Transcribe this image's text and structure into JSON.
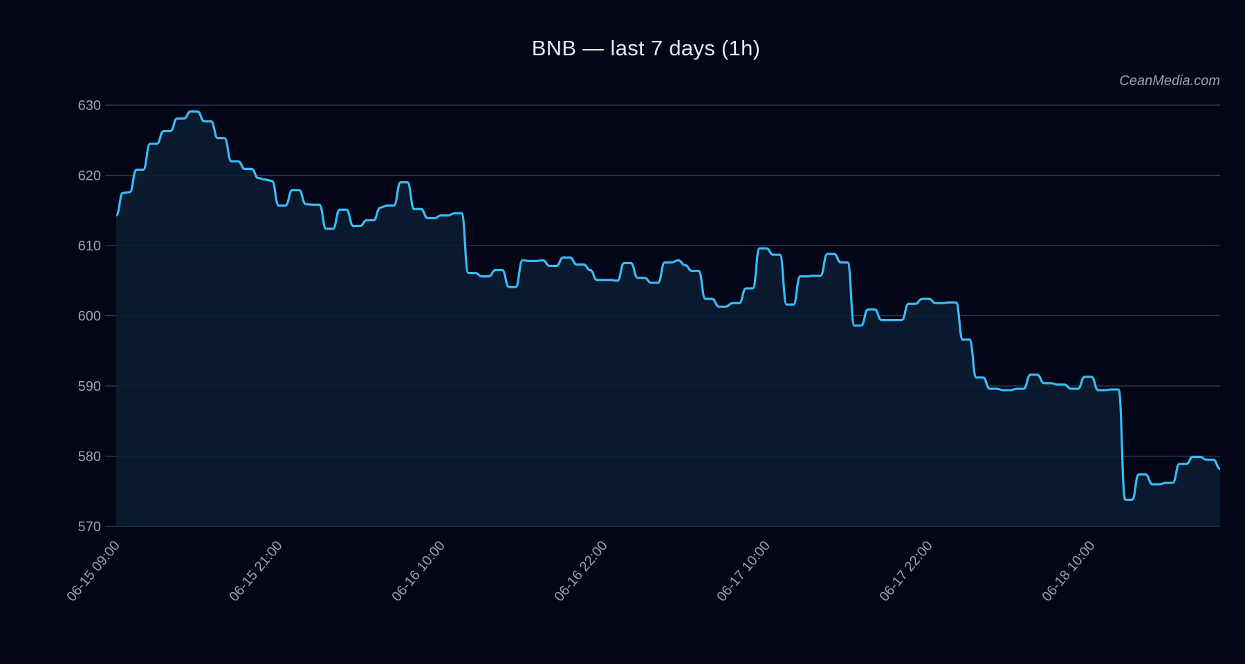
{
  "chart_data": {
    "type": "area",
    "title": "BNB — last 7 days (1h)",
    "watermark": "CeanMedia.com",
    "xlabel": "",
    "ylabel": "",
    "ylim": [
      570,
      630
    ],
    "yticks": [
      570,
      580,
      590,
      600,
      610,
      620,
      630
    ],
    "xticks": [
      "06-15 09:00",
      "06-15 21:00",
      "06-16 10:00",
      "06-16 22:00",
      "06-17 10:00",
      "06-17 22:00",
      "06-18 10:00"
    ],
    "xtick_positions": [
      0,
      12,
      24,
      36,
      48,
      60,
      72
    ],
    "x_count": 84,
    "grid": true,
    "colors": {
      "line": "#38bdf8",
      "fill": "#0c1f33",
      "background": "#020617",
      "grid": "#334155"
    },
    "series": [
      {
        "values": [
          614.3,
          617.5,
          617.6,
          620.8,
          620.8,
          624.5,
          624.5,
          626.3,
          626.3,
          628.1,
          628.1,
          629.1,
          629.1,
          627.7,
          627.7,
          625.3,
          625.3,
          622.0,
          622.0,
          620.9,
          620.9,
          619.6,
          619.4,
          619.2,
          615.7,
          615.7,
          617.9,
          617.9,
          615.9,
          615.8,
          615.8,
          612.4,
          612.4,
          615.1,
          615.1,
          612.8,
          612.8,
          613.6,
          613.6,
          615.4,
          615.7,
          615.7,
          619.0,
          619.0,
          615.2,
          615.2,
          613.9,
          613.9,
          614.3,
          614.3,
          614.6,
          614.6,
          606.1,
          606.1,
          605.6,
          605.6,
          606.5,
          606.5,
          604.1,
          604.1,
          607.9,
          607.8,
          607.8,
          607.9,
          607.1,
          607.1,
          608.3,
          608.3,
          607.3,
          607.3,
          606.5,
          605.1,
          605.1,
          605.1,
          605.0,
          607.5,
          607.5,
          605.4,
          605.4,
          604.7,
          604.7,
          607.6,
          607.6,
          607.9
        ]
      }
    ]
  }
}
